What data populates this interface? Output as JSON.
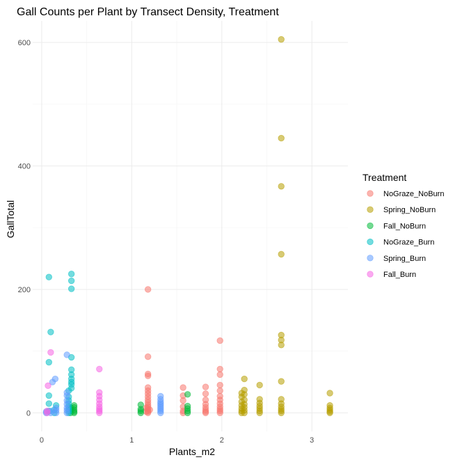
{
  "chart_data": {
    "type": "scatter",
    "title": "Gall Counts per Plant by Transect Density, Treatment",
    "xlabel": "Plants_m2",
    "ylabel": "GallTotal",
    "xlim": [
      -0.1,
      3.4
    ],
    "ylim": [
      -30,
      635
    ],
    "x_ticks": [
      0,
      1,
      2,
      3
    ],
    "y_ticks": [
      0,
      200,
      400,
      600
    ],
    "grid": true,
    "legend": {
      "title": "Treatment",
      "position": "right"
    },
    "series": [
      {
        "name": "NoGraze_NoBurn",
        "color": "#F8766D",
        "points": [
          [
            1.18,
            0
          ],
          [
            1.18,
            2
          ],
          [
            1.18,
            4
          ],
          [
            1.18,
            7
          ],
          [
            1.18,
            10
          ],
          [
            1.18,
            13
          ],
          [
            1.18,
            17
          ],
          [
            1.18,
            21
          ],
          [
            1.18,
            26
          ],
          [
            1.18,
            31
          ],
          [
            1.18,
            36
          ],
          [
            1.18,
            41
          ],
          [
            1.18,
            60
          ],
          [
            1.18,
            63
          ],
          [
            1.18,
            91
          ],
          [
            1.18,
            200
          ],
          [
            1.16,
            2
          ],
          [
            1.16,
            8
          ],
          [
            1.2,
            5
          ],
          [
            1.57,
            0
          ],
          [
            1.57,
            3
          ],
          [
            1.57,
            10
          ],
          [
            1.57,
            20
          ],
          [
            1.57,
            28
          ],
          [
            1.57,
            41
          ],
          [
            1.82,
            0
          ],
          [
            1.82,
            2
          ],
          [
            1.82,
            5
          ],
          [
            1.82,
            9
          ],
          [
            1.82,
            14
          ],
          [
            1.82,
            21
          ],
          [
            1.82,
            31
          ],
          [
            1.82,
            42
          ],
          [
            1.98,
            0
          ],
          [
            1.98,
            3
          ],
          [
            1.98,
            6
          ],
          [
            1.98,
            10
          ],
          [
            1.98,
            15
          ],
          [
            1.98,
            21
          ],
          [
            1.98,
            27
          ],
          [
            1.98,
            36
          ],
          [
            1.98,
            45
          ],
          [
            1.98,
            62
          ],
          [
            1.98,
            71
          ],
          [
            1.98,
            117
          ]
        ]
      },
      {
        "name": "Spring_NoBurn",
        "color": "#B79F00",
        "points": [
          [
            2.22,
            0
          ],
          [
            2.22,
            3
          ],
          [
            2.22,
            7
          ],
          [
            2.22,
            12
          ],
          [
            2.22,
            18
          ],
          [
            2.22,
            26
          ],
          [
            2.22,
            32
          ],
          [
            2.25,
            0
          ],
          [
            2.25,
            4
          ],
          [
            2.25,
            9
          ],
          [
            2.25,
            14
          ],
          [
            2.25,
            21
          ],
          [
            2.25,
            30
          ],
          [
            2.25,
            37
          ],
          [
            2.25,
            55
          ],
          [
            2.42,
            0
          ],
          [
            2.42,
            3
          ],
          [
            2.42,
            7
          ],
          [
            2.42,
            11
          ],
          [
            2.42,
            16
          ],
          [
            2.42,
            22
          ],
          [
            2.42,
            45
          ],
          [
            2.66,
            0
          ],
          [
            2.66,
            3
          ],
          [
            2.66,
            6
          ],
          [
            2.66,
            10
          ],
          [
            2.66,
            15
          ],
          [
            2.66,
            22
          ],
          [
            2.66,
            51
          ],
          [
            2.66,
            110
          ],
          [
            2.66,
            118
          ],
          [
            2.66,
            126
          ],
          [
            2.66,
            257
          ],
          [
            2.66,
            367
          ],
          [
            2.66,
            445
          ],
          [
            2.66,
            605
          ],
          [
            3.2,
            0
          ],
          [
            3.2,
            2
          ],
          [
            3.2,
            5
          ],
          [
            3.2,
            8
          ],
          [
            3.2,
            12
          ],
          [
            3.2,
            32
          ]
        ]
      },
      {
        "name": "Fall_NoBurn",
        "color": "#00BA38",
        "points": [
          [
            0.32,
            0
          ],
          [
            0.32,
            3
          ],
          [
            0.32,
            6
          ],
          [
            0.32,
            9
          ],
          [
            0.36,
            0
          ],
          [
            0.36,
            2
          ],
          [
            0.36,
            5
          ],
          [
            0.36,
            9
          ],
          [
            0.36,
            12
          ],
          [
            1.1,
            0
          ],
          [
            1.1,
            3
          ],
          [
            1.1,
            6
          ],
          [
            1.1,
            13
          ],
          [
            1.62,
            0
          ],
          [
            1.62,
            3
          ],
          [
            1.62,
            7
          ],
          [
            1.62,
            11
          ],
          [
            1.62,
            30
          ]
        ]
      },
      {
        "name": "NoGraze_Burn",
        "color": "#00BFC4",
        "points": [
          [
            0.08,
            220
          ],
          [
            0.1,
            131
          ],
          [
            0.08,
            82
          ],
          [
            0.08,
            28
          ],
          [
            0.08,
            15
          ],
          [
            0.08,
            3
          ],
          [
            0.14,
            0
          ],
          [
            0.14,
            5
          ],
          [
            0.16,
            12
          ],
          [
            0.3,
            0
          ],
          [
            0.3,
            3
          ],
          [
            0.3,
            6
          ],
          [
            0.3,
            10
          ],
          [
            0.3,
            15
          ],
          [
            0.3,
            20
          ],
          [
            0.3,
            26
          ],
          [
            0.3,
            36
          ],
          [
            0.33,
            40
          ],
          [
            0.33,
            46
          ],
          [
            0.33,
            50
          ],
          [
            0.33,
            55
          ],
          [
            0.33,
            62
          ],
          [
            0.33,
            70
          ],
          [
            0.33,
            90
          ],
          [
            0.33,
            201
          ],
          [
            0.33,
            214
          ],
          [
            0.33,
            225
          ]
        ]
      },
      {
        "name": "Spring_Burn",
        "color": "#619CFF",
        "points": [
          [
            0.05,
            0
          ],
          [
            0.05,
            2
          ],
          [
            0.1,
            0
          ],
          [
            0.1,
            3
          ],
          [
            0.12,
            50
          ],
          [
            0.15,
            55
          ],
          [
            0.16,
            0
          ],
          [
            0.16,
            4
          ],
          [
            0.16,
            8
          ],
          [
            0.28,
            0
          ],
          [
            0.28,
            4
          ],
          [
            0.28,
            8
          ],
          [
            0.28,
            14
          ],
          [
            0.28,
            20
          ],
          [
            0.28,
            28
          ],
          [
            0.28,
            33
          ],
          [
            0.28,
            94
          ],
          [
            1.32,
            0
          ],
          [
            1.32,
            3
          ],
          [
            1.32,
            6
          ],
          [
            1.32,
            9
          ],
          [
            1.32,
            12
          ],
          [
            1.32,
            15
          ],
          [
            1.32,
            18
          ],
          [
            1.32,
            22
          ],
          [
            1.32,
            27
          ]
        ]
      },
      {
        "name": "Fall_Burn",
        "color": "#F564E3",
        "points": [
          [
            0.07,
            44
          ],
          [
            0.1,
            98
          ],
          [
            0.06,
            0
          ],
          [
            0.06,
            3
          ],
          [
            0.64,
            0
          ],
          [
            0.64,
            3
          ],
          [
            0.64,
            6
          ],
          [
            0.64,
            10
          ],
          [
            0.64,
            15
          ],
          [
            0.64,
            21
          ],
          [
            0.64,
            27
          ],
          [
            0.64,
            33
          ],
          [
            0.64,
            71
          ]
        ]
      }
    ]
  }
}
